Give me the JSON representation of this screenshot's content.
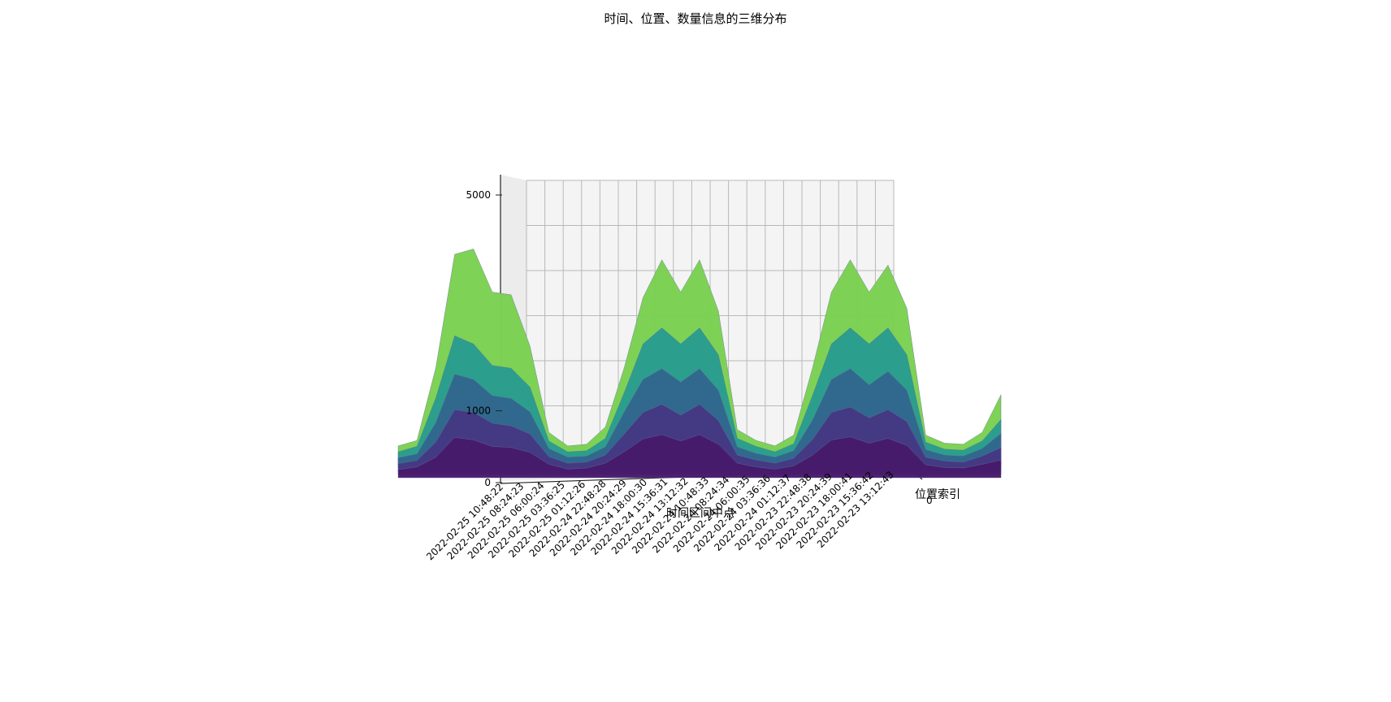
{
  "chart_data": {
    "type": "surface3d",
    "title": "时间、位置、数量信息的三维分布",
    "xlabel": "时间区间中点",
    "ylabel": "位置索引",
    "zlabel": "",
    "x_ticks": [
      "2022-02-25 10:48:22",
      "2022-02-25 08:24:23",
      "2022-02-25 06:00:24",
      "2022-02-25 03:36:25",
      "2022-02-25 01:12:26",
      "2022-02-24 22:48:28",
      "2022-02-24 20:24:29",
      "2022-02-24 18:00:30",
      "2022-02-24 15:36:31",
      "2022-02-24 13:12:32",
      "2022-02-24 10:48:33",
      "2022-02-24 08:24:34",
      "2022-02-24 06:00:35",
      "2022-02-24 03:36:36",
      "2022-02-24 01:12:37",
      "2022-02-23 22:48:38",
      "2022-02-23 20:24:39",
      "2022-02-23 18:00:41",
      "2022-02-23 15:36:42",
      "2022-02-23 13:12:43"
    ],
    "y_ticks": [
      "0"
    ],
    "z_ticks": [
      "0",
      "1000",
      "5000"
    ],
    "zlim": [
      0,
      5500
    ],
    "colormap": "viridis",
    "colors": {
      "pane": "#f4f4f4",
      "grid": "#b8b8b8",
      "low": "#440154",
      "mid": "#31688e",
      "high": "#35b779",
      "top": "#7ad151"
    },
    "series": [
      {
        "values": [
          350,
          450,
          1800,
          3900,
          4000,
          3200,
          3150,
          2200,
          600,
          350,
          380,
          700,
          1800,
          3100,
          3800,
          3200,
          3800,
          2850,
          650,
          450,
          350,
          550,
          1800,
          3200,
          3800,
          3200,
          3700,
          2900,
          550,
          400,
          380,
          600,
          1300
        ]
      },
      {
        "values": [
          300,
          400,
          1300,
          2450,
          2300,
          1900,
          1850,
          1500,
          500,
          300,
          320,
          550,
          1400,
          2300,
          2600,
          2300,
          2600,
          2100,
          550,
          400,
          300,
          450,
          1350,
          2300,
          2600,
          2300,
          2600,
          2100,
          480,
          350,
          330,
          500,
          900
        ]
      },
      {
        "values": [
          250,
          320,
          900,
          1800,
          1700,
          1400,
          1350,
          1100,
          420,
          260,
          280,
          450,
          1100,
          1700,
          1900,
          1650,
          1900,
          1500,
          450,
          330,
          260,
          380,
          950,
          1700,
          1900,
          1600,
          1850,
          1500,
          400,
          300,
          280,
          420,
          700
        ]
      },
      {
        "values": [
          200,
          260,
          600,
          1200,
          1150,
          950,
          900,
          750,
          330,
          210,
          230,
          360,
          750,
          1150,
          1300,
          1100,
          1300,
          1000,
          360,
          270,
          210,
          300,
          650,
          1150,
          1250,
          1050,
          1200,
          980,
          320,
          250,
          230,
          340,
          500
        ]
      },
      {
        "values": [
          150,
          200,
          380,
          750,
          700,
          580,
          560,
          470,
          250,
          160,
          180,
          270,
          480,
          720,
          800,
          680,
          800,
          620,
          270,
          200,
          160,
          220,
          420,
          700,
          760,
          640,
          730,
          600,
          240,
          190,
          180,
          250,
          330
        ]
      }
    ]
  }
}
